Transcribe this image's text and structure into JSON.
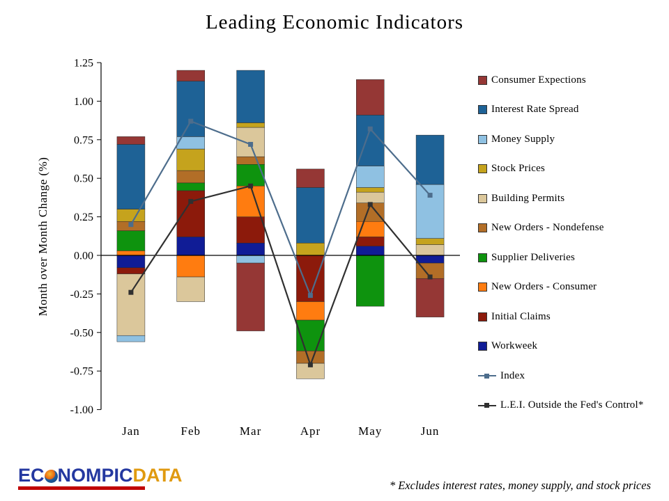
{
  "footnote": "* Excludes interest rates, money supply, and stock prices",
  "logo": {
    "prefix": "EC",
    "middle": "NOMPIC",
    "suffix": "DATA"
  },
  "chart_data": {
    "type": "bar",
    "stacked": true,
    "title": "Leading Economic Indicators",
    "ylabel": "Month over Month Change (%)",
    "categories": [
      "Jan",
      "Feb",
      "Mar",
      "Apr",
      "May",
      "Jun"
    ],
    "ylim": [
      -1.0,
      1.25
    ],
    "ytick_step": 0.25,
    "grid": false,
    "legend_position": "right",
    "bar_series": [
      {
        "name": "Consumer Expections",
        "color": "#953735",
        "values": [
          0.05,
          0.07,
          -0.44,
          0.12,
          0.23,
          -0.25
        ]
      },
      {
        "name": "Interest Rate Spread",
        "color": "#1E6296",
        "values": [
          0.42,
          0.36,
          0.34,
          0.36,
          0.33,
          0.32
        ]
      },
      {
        "name": "Money Supply",
        "color": "#8FC1E2",
        "values": [
          -0.04,
          0.08,
          -0.05,
          0.0,
          0.14,
          0.35
        ]
      },
      {
        "name": "Stock Prices",
        "color": "#C5A31D",
        "values": [
          0.08,
          0.14,
          0.03,
          0.08,
          0.03,
          0.04
        ]
      },
      {
        "name": "Building Permits",
        "color": "#DBC79B",
        "values": [
          -0.4,
          -0.16,
          0.19,
          -0.1,
          0.07,
          0.07
        ]
      },
      {
        "name": "New Orders - Nondefense",
        "color": "#B26E27",
        "values": [
          0.06,
          0.08,
          0.05,
          -0.08,
          0.12,
          -0.1
        ]
      },
      {
        "name": "Supplier Deliveries",
        "color": "#0E930E",
        "values": [
          0.13,
          0.05,
          0.14,
          -0.2,
          -0.33,
          0.0
        ]
      },
      {
        "name": "New Orders - Consumer",
        "color": "#FF7C10",
        "values": [
          0.03,
          -0.14,
          0.2,
          -0.12,
          0.1,
          0.0
        ]
      },
      {
        "name": "Initial Claims",
        "color": "#8C1A0B",
        "values": [
          -0.04,
          0.3,
          0.17,
          -0.3,
          0.06,
          0.0
        ]
      },
      {
        "name": "Workweek",
        "color": "#101C96",
        "values": [
          -0.08,
          0.12,
          0.08,
          0.0,
          0.06,
          -0.05
        ]
      }
    ],
    "line_series": [
      {
        "id": "index",
        "name": "Index",
        "color": "#4D6D8C",
        "values": [
          0.2,
          0.87,
          0.72,
          -0.26,
          0.82,
          0.39
        ]
      },
      {
        "id": "lei",
        "name": "L.E.I. Outside the Fed's Control*",
        "color": "#303030",
        "values": [
          -0.24,
          0.35,
          0.45,
          -0.71,
          0.33,
          -0.14
        ]
      }
    ]
  }
}
